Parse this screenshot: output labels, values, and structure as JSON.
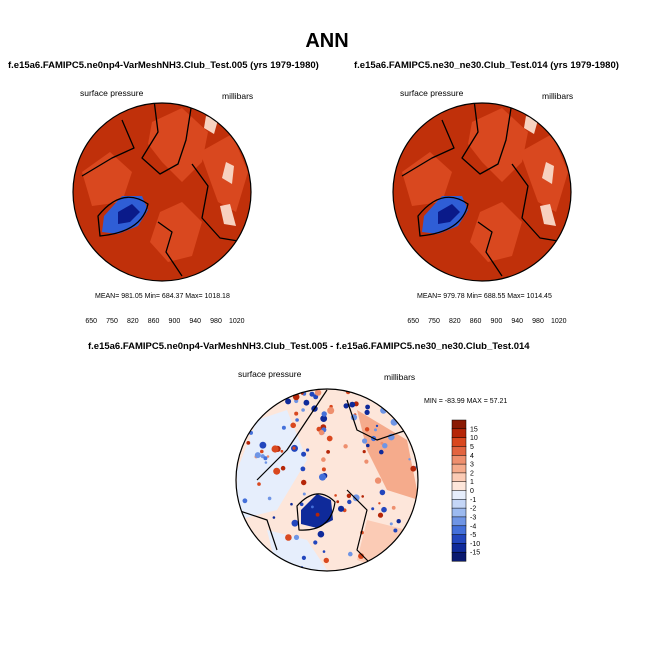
{
  "page_title": "ANN",
  "colors": {
    "dark_red": "#c0300a",
    "mid_red": "#d9481f",
    "pink": "#f7d2c0",
    "blue": "#2f5ed6",
    "navy": "#0a1a8a"
  },
  "chart_data": [
    {
      "type": "heatmap",
      "projection": "north-polar-stereographic",
      "title": "f.e15a6.FAMIPC5.ne0np4-VarMeshNH3.Club_Test.005 (yrs 1979-1980)",
      "variable": "surface pressure",
      "units": "millibars",
      "stats": {
        "label": "MEAN= 981.05  Min= 684.37  Max= 1018.18",
        "mean": 981.05,
        "min": 684.37,
        "max": 1018.18
      },
      "colorbar": {
        "orientation": "horizontal",
        "levels": [
          650,
          700,
          750,
          800,
          820,
          840,
          860,
          880,
          900,
          920,
          940,
          960,
          980,
          1000,
          1020
        ],
        "tick_labels": [
          "650",
          "750",
          "820",
          "860",
          "900",
          "940",
          "980",
          "1020"
        ],
        "colors": [
          "#0a1a8a",
          "#1d39b8",
          "#2f5ed6",
          "#5a86e6",
          "#8db1f0",
          "#b8cff7",
          "#dde8fb",
          "#ffffff",
          "#fde0d2",
          "#f7b9a0",
          "#ee8f6e",
          "#e26440",
          "#d9481f",
          "#c0300a",
          "#8a1a04"
        ]
      }
    },
    {
      "type": "heatmap",
      "projection": "north-polar-stereographic",
      "title": "f.e15a6.FAMIPC5.ne30_ne30.Club_Test.014 (yrs 1979-1980)",
      "variable": "surface pressure",
      "units": "millibars",
      "stats": {
        "label": "MEAN= 979.78  Min= 688.55  Max= 1014.45",
        "mean": 979.78,
        "min": 688.55,
        "max": 1014.45
      },
      "colorbar": {
        "orientation": "horizontal",
        "levels": [
          650,
          700,
          750,
          800,
          820,
          840,
          860,
          880,
          900,
          920,
          940,
          960,
          980,
          1000,
          1020
        ],
        "tick_labels": [
          "650",
          "750",
          "820",
          "860",
          "900",
          "940",
          "980",
          "1020"
        ],
        "colors": [
          "#0a1a8a",
          "#1d39b8",
          "#2f5ed6",
          "#5a86e6",
          "#8db1f0",
          "#b8cff7",
          "#dde8fb",
          "#ffffff",
          "#fde0d2",
          "#f7b9a0",
          "#ee8f6e",
          "#e26440",
          "#d9481f",
          "#c0300a",
          "#8a1a04"
        ]
      }
    },
    {
      "type": "heatmap",
      "projection": "north-polar-stereographic",
      "title": "f.e15a6.FAMIPC5.ne0np4-VarMeshNH3.Club_Test.005 - f.e15a6.FAMIPC5.ne30_ne30.Club_Test.014",
      "variable": "surface pressure",
      "units": "millibars",
      "stats": {
        "label": "MIN = -83.99 MAX =  57.21",
        "min": -83.99,
        "max": 57.21
      },
      "colorbar": {
        "orientation": "vertical",
        "tick_labels": [
          "15",
          "10",
          "5",
          "4",
          "3",
          "2",
          "1",
          "0",
          "-1",
          "-2",
          "-3",
          "-4",
          "-5",
          "-10",
          "-15"
        ],
        "colors": [
          "#8a1a04",
          "#b52608",
          "#d9481f",
          "#e26440",
          "#ee8f6e",
          "#f5ab8c",
          "#fbcbb5",
          "#fde6da",
          "#e6eefc",
          "#c4d6f7",
          "#9cbaf0",
          "#6f95e5",
          "#4470da",
          "#2246bd",
          "#0f2a9a",
          "#0a1a70"
        ]
      }
    }
  ]
}
